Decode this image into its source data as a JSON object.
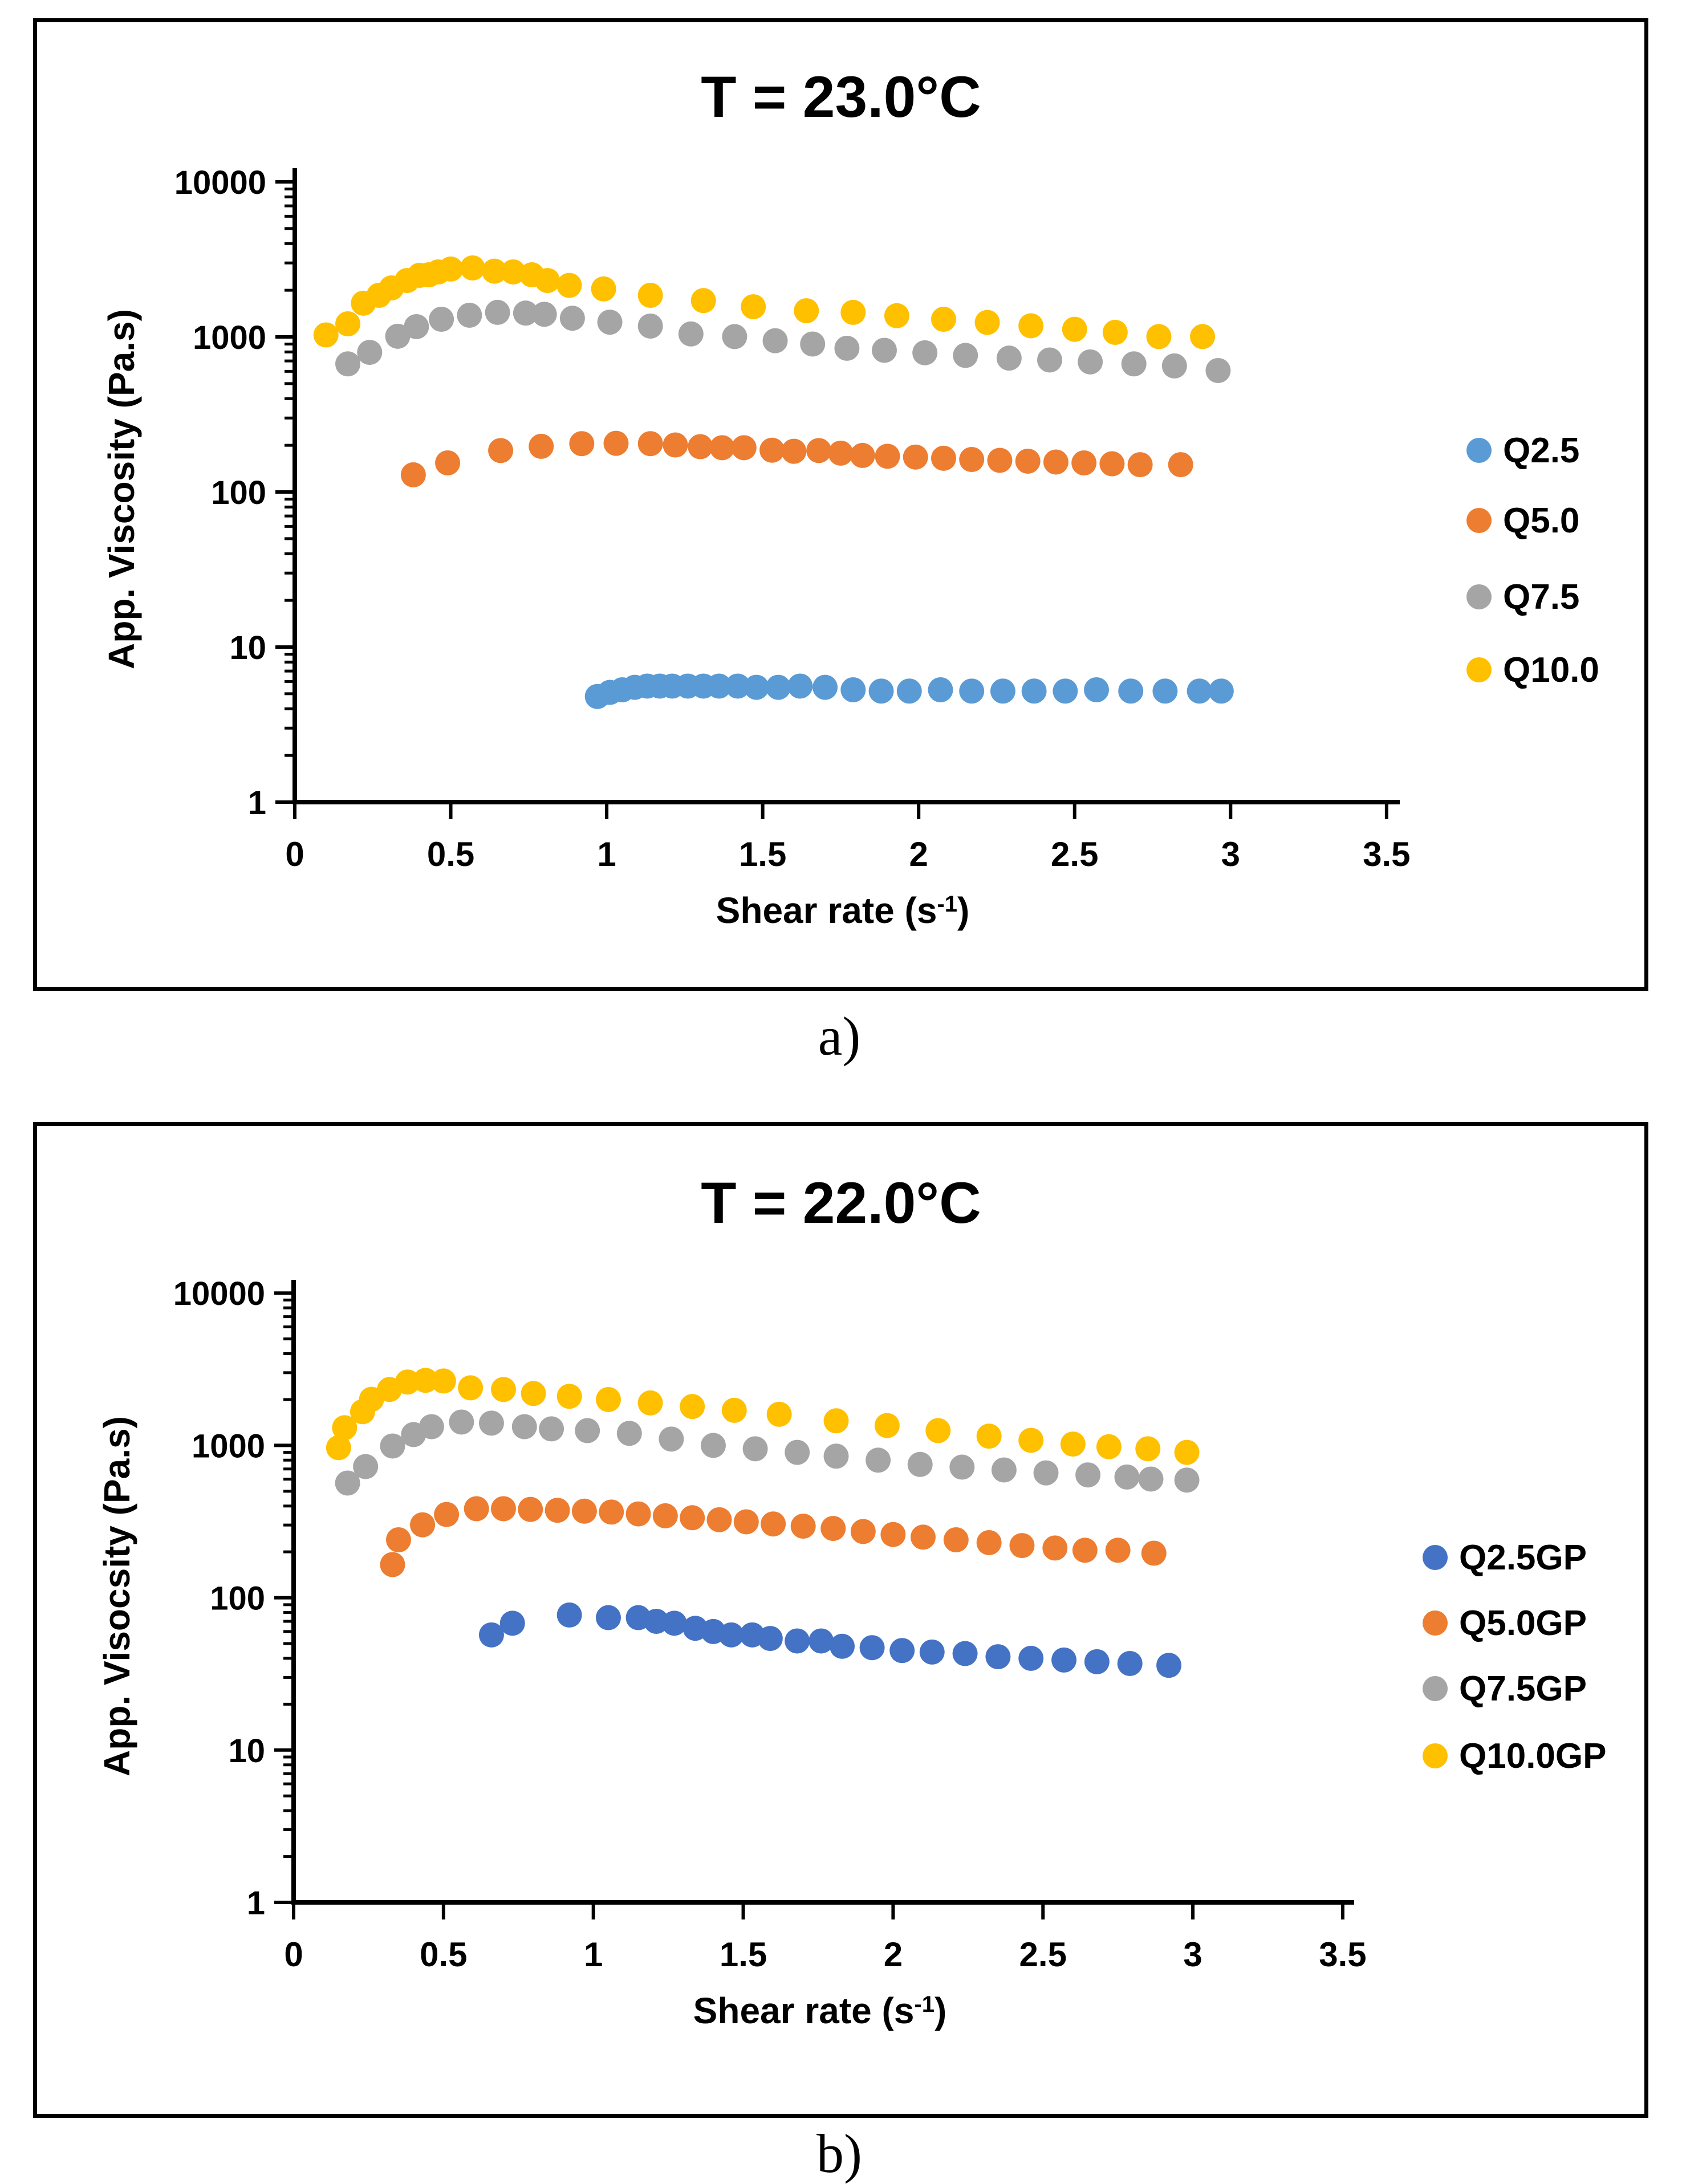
{
  "panel_labels": [
    "a)",
    "b)"
  ],
  "chart_data": [
    {
      "type": "scatter",
      "title": "T = 23.0°C",
      "xlabel": "Shear rate (s-1)",
      "xlabel_parts": {
        "pre": "Shear rate (s",
        "sup": "-1",
        "post": ")"
      },
      "ylabel": "App. Viscosity (Pa.s)",
      "x_axis": {
        "min": 0,
        "max": 3.5,
        "tick_values": [
          0,
          0.5,
          1,
          1.5,
          2,
          2.5,
          3,
          3.5
        ],
        "tick_labels": [
          "0",
          "0.5",
          "1",
          "1.5",
          "2",
          "2.5",
          "3",
          "3.5"
        ]
      },
      "y_axis": {
        "scale": "log",
        "min": 1,
        "max": 10000,
        "tick_labels": [
          "1",
          "10",
          "100",
          "1000",
          "10000"
        ]
      },
      "legend_position": "right",
      "grid": false,
      "series": [
        {
          "name": "Q2.5",
          "color": "#5B9BD5",
          "points": [
            [
              0.97,
              4.8
            ],
            [
              1.01,
              5.1
            ],
            [
              1.05,
              5.3
            ],
            [
              1.09,
              5.5
            ],
            [
              1.13,
              5.6
            ],
            [
              1.17,
              5.6
            ],
            [
              1.21,
              5.6
            ],
            [
              1.26,
              5.6
            ],
            [
              1.31,
              5.6
            ],
            [
              1.36,
              5.6
            ],
            [
              1.42,
              5.6
            ],
            [
              1.48,
              5.5
            ],
            [
              1.55,
              5.5
            ],
            [
              1.62,
              5.6
            ],
            [
              1.7,
              5.5
            ],
            [
              1.79,
              5.3
            ],
            [
              1.88,
              5.2
            ],
            [
              1.97,
              5.2
            ],
            [
              2.07,
              5.3
            ],
            [
              2.17,
              5.2
            ],
            [
              2.27,
              5.2
            ],
            [
              2.37,
              5.2
            ],
            [
              2.47,
              5.2
            ],
            [
              2.57,
              5.3
            ],
            [
              2.68,
              5.2
            ],
            [
              2.79,
              5.2
            ],
            [
              2.9,
              5.2
            ],
            [
              2.97,
              5.2
            ]
          ]
        },
        {
          "name": "Q5.0",
          "color": "#ED7D31",
          "points": [
            [
              0.38,
              129
            ],
            [
              0.49,
              154
            ],
            [
              0.66,
              185
            ],
            [
              0.79,
              197
            ],
            [
              0.92,
              205
            ],
            [
              1.03,
              206
            ],
            [
              1.14,
              205
            ],
            [
              1.22,
              201
            ],
            [
              1.3,
              196
            ],
            [
              1.37,
              193
            ],
            [
              1.44,
              193
            ],
            [
              1.53,
              186
            ],
            [
              1.6,
              183
            ],
            [
              1.68,
              185
            ],
            [
              1.75,
              178
            ],
            [
              1.82,
              172
            ],
            [
              1.9,
              170
            ],
            [
              1.99,
              168
            ],
            [
              2.08,
              165
            ],
            [
              2.17,
              162
            ],
            [
              2.26,
              160
            ],
            [
              2.35,
              158
            ],
            [
              2.44,
              156
            ],
            [
              2.53,
              154
            ],
            [
              2.62,
              152
            ],
            [
              2.71,
              150
            ],
            [
              2.84,
              150
            ]
          ]
        },
        {
          "name": "Q7.5",
          "color": "#A5A5A5",
          "points": [
            [
              0.17,
              670
            ],
            [
              0.24,
              795
            ],
            [
              0.33,
              1010
            ],
            [
              0.39,
              1165
            ],
            [
              0.47,
              1300
            ],
            [
              0.56,
              1380
            ],
            [
              0.65,
              1440
            ],
            [
              0.74,
              1425
            ],
            [
              0.8,
              1400
            ],
            [
              0.89,
              1320
            ],
            [
              1.01,
              1245
            ],
            [
              1.14,
              1175
            ],
            [
              1.27,
              1045
            ],
            [
              1.41,
              1005
            ],
            [
              1.54,
              945
            ],
            [
              1.66,
              900
            ],
            [
              1.77,
              845
            ],
            [
              1.89,
              820
            ],
            [
              2.02,
              790
            ],
            [
              2.15,
              760
            ],
            [
              2.29,
              730
            ],
            [
              2.42,
              710
            ],
            [
              2.55,
              690
            ],
            [
              2.69,
              670
            ],
            [
              2.82,
              650
            ],
            [
              2.96,
              607
            ]
          ]
        },
        {
          "name": "Q10.0",
          "color": "#FFC000",
          "points": [
            [
              0.1,
              1030
            ],
            [
              0.17,
              1215
            ],
            [
              0.22,
              1650
            ],
            [
              0.27,
              1855
            ],
            [
              0.31,
              2070
            ],
            [
              0.36,
              2310
            ],
            [
              0.4,
              2495
            ],
            [
              0.43,
              2515
            ],
            [
              0.46,
              2625
            ],
            [
              0.5,
              2740
            ],
            [
              0.57,
              2785
            ],
            [
              0.64,
              2655
            ],
            [
              0.7,
              2625
            ],
            [
              0.76,
              2515
            ],
            [
              0.81,
              2310
            ],
            [
              0.88,
              2150
            ],
            [
              0.99,
              2040
            ],
            [
              1.14,
              1855
            ],
            [
              1.31,
              1715
            ],
            [
              1.47,
              1565
            ],
            [
              1.64,
              1475
            ],
            [
              1.79,
              1440
            ],
            [
              1.93,
              1370
            ],
            [
              2.08,
              1300
            ],
            [
              2.22,
              1240
            ],
            [
              2.36,
              1180
            ],
            [
              2.5,
              1120
            ],
            [
              2.63,
              1070
            ],
            [
              2.77,
              1005
            ],
            [
              2.91,
              1005
            ]
          ]
        }
      ]
    },
    {
      "type": "scatter",
      "title": "T = 22.0°C",
      "xlabel": "Shear rate (s-1)",
      "xlabel_parts": {
        "pre": "Shear rate (s",
        "sup": "-1",
        "post": ")"
      },
      "ylabel": "App. Visocsity (Pa.s)",
      "x_axis": {
        "min": 0,
        "max": 3.5,
        "tick_values": [
          0,
          0.5,
          1,
          1.5,
          2,
          2.5,
          3,
          3.5
        ],
        "tick_labels": [
          "0",
          "0.5",
          "1",
          "1.5",
          "2",
          "2.5",
          "3",
          "3.5"
        ]
      },
      "y_axis": {
        "scale": "log",
        "min": 1,
        "max": 10000,
        "tick_labels": [
          "1",
          "10",
          "100",
          "1000",
          "10000"
        ]
      },
      "legend_position": "right",
      "grid": false,
      "series": [
        {
          "name": "Q2.5GP",
          "color": "#4472C4",
          "points": [
            [
              0.66,
              57
            ],
            [
              0.73,
              68
            ],
            [
              0.92,
              77
            ],
            [
              1.05,
              74
            ],
            [
              1.15,
              74
            ],
            [
              1.21,
              70
            ],
            [
              1.27,
              68
            ],
            [
              1.34,
              63
            ],
            [
              1.4,
              60
            ],
            [
              1.46,
              57
            ],
            [
              1.53,
              57
            ],
            [
              1.59,
              54
            ],
            [
              1.68,
              52
            ],
            [
              1.76,
              52
            ],
            [
              1.83,
              48
            ],
            [
              1.93,
              47
            ],
            [
              2.03,
              45
            ],
            [
              2.13,
              44
            ],
            [
              2.24,
              43
            ],
            [
              2.35,
              41
            ],
            [
              2.46,
              40
            ],
            [
              2.57,
              39
            ],
            [
              2.68,
              38
            ],
            [
              2.79,
              37
            ],
            [
              2.92,
              36
            ]
          ]
        },
        {
          "name": "Q5.0GP",
          "color": "#ED7D31",
          "points": [
            [
              0.33,
              165
            ],
            [
              0.35,
              240
            ],
            [
              0.43,
              301
            ],
            [
              0.51,
              352
            ],
            [
              0.61,
              384
            ],
            [
              0.7,
              384
            ],
            [
              0.79,
              380
            ],
            [
              0.88,
              375
            ],
            [
              0.97,
              370
            ],
            [
              1.06,
              365
            ],
            [
              1.15,
              355
            ],
            [
              1.24,
              345
            ],
            [
              1.33,
              335
            ],
            [
              1.42,
              325
            ],
            [
              1.51,
              315
            ],
            [
              1.6,
              305
            ],
            [
              1.7,
              295
            ],
            [
              1.8,
              285
            ],
            [
              1.9,
              272
            ],
            [
              2.0,
              260
            ],
            [
              2.1,
              250
            ],
            [
              2.21,
              240
            ],
            [
              2.32,
              230
            ],
            [
              2.43,
              220
            ],
            [
              2.54,
              212
            ],
            [
              2.64,
              205
            ],
            [
              2.75,
              205
            ],
            [
              2.87,
              196
            ]
          ]
        },
        {
          "name": "Q7.5GP",
          "color": "#A5A5A5",
          "points": [
            [
              0.18,
              566
            ],
            [
              0.24,
              726
            ],
            [
              0.33,
              991
            ],
            [
              0.4,
              1178
            ],
            [
              0.46,
              1327
            ],
            [
              0.56,
              1423
            ],
            [
              0.66,
              1400
            ],
            [
              0.77,
              1327
            ],
            [
              0.86,
              1284
            ],
            [
              0.98,
              1250
            ],
            [
              1.12,
              1200
            ],
            [
              1.26,
              1100
            ],
            [
              1.4,
              1000
            ],
            [
              1.54,
              950
            ],
            [
              1.68,
              900
            ],
            [
              1.81,
              850
            ],
            [
              1.95,
              800
            ],
            [
              2.09,
              750
            ],
            [
              2.23,
              720
            ],
            [
              2.37,
              690
            ],
            [
              2.51,
              660
            ],
            [
              2.65,
              640
            ],
            [
              2.78,
              620
            ],
            [
              2.86,
              601
            ],
            [
              2.98,
              592
            ]
          ]
        },
        {
          "name": "Q10.0GP",
          "color": "#FFC000",
          "points": [
            [
              0.15,
              966
            ],
            [
              0.17,
              1306
            ],
            [
              0.23,
              1664
            ],
            [
              0.26,
              2009
            ],
            [
              0.32,
              2328
            ],
            [
              0.38,
              2606
            ],
            [
              0.44,
              2673
            ],
            [
              0.5,
              2648
            ],
            [
              0.59,
              2388
            ],
            [
              0.7,
              2328
            ],
            [
              0.8,
              2193
            ],
            [
              0.92,
              2100
            ],
            [
              1.05,
              2000
            ],
            [
              1.19,
              1900
            ],
            [
              1.33,
              1800
            ],
            [
              1.47,
              1700
            ],
            [
              1.62,
              1600
            ],
            [
              1.81,
              1450
            ],
            [
              1.98,
              1350
            ],
            [
              2.15,
              1250
            ],
            [
              2.32,
              1150
            ],
            [
              2.46,
              1080
            ],
            [
              2.6,
              1020
            ],
            [
              2.72,
              980
            ],
            [
              2.85,
              950
            ],
            [
              2.98,
              900
            ]
          ]
        }
      ]
    }
  ]
}
